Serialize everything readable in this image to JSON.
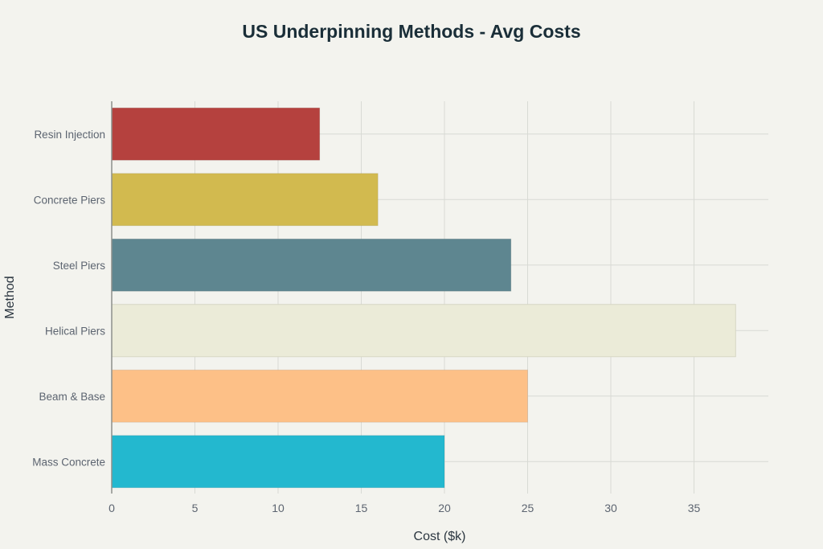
{
  "chart_data": {
    "type": "bar",
    "orientation": "horizontal",
    "title": "US Underpinning Methods - Avg Costs",
    "xlabel": "Cost ($k)",
    "ylabel": "Method",
    "categories": [
      "Resin Injection",
      "Concrete Piers",
      "Steel Piers",
      "Helical Piers",
      "Beam & Base",
      "Mass Concrete"
    ],
    "values": [
      12.5,
      16,
      24,
      37.5,
      25,
      20
    ],
    "colors": [
      "#b5413e",
      "#d2ba4f",
      "#5e8690",
      "#ebebd8",
      "#fdc087",
      "#23b8cf"
    ],
    "xlim": [
      0,
      39.5
    ],
    "xticks": [
      0,
      5,
      10,
      15,
      20,
      25,
      30,
      35
    ],
    "grid": true
  }
}
